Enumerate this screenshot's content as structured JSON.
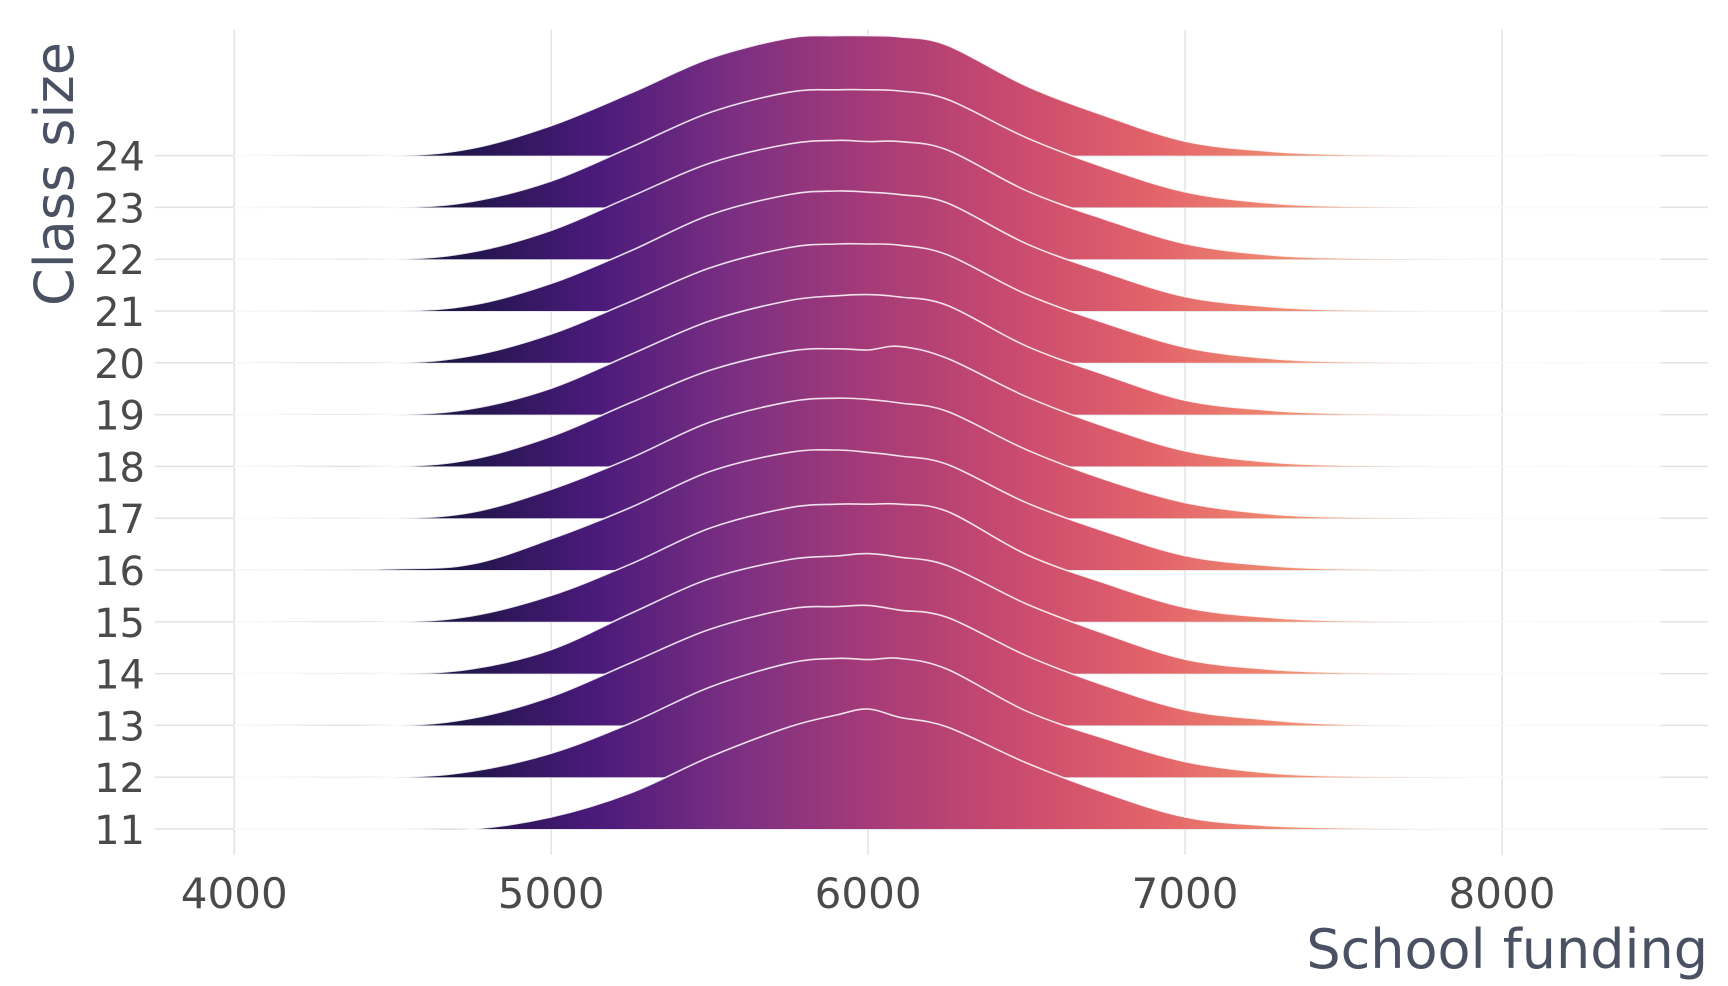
{
  "chart_data": {
    "type": "ridgeline",
    "xlabel": "School funding",
    "ylabel": "Class size",
    "xlim": [
      3750,
      8650
    ],
    "x_ticks": [
      4000,
      5000,
      6000,
      7000,
      8000
    ],
    "categories": [
      "11",
      "12",
      "13",
      "14",
      "15",
      "16",
      "17",
      "18",
      "19",
      "20",
      "21",
      "22",
      "23",
      "24"
    ],
    "grid": true,
    "legend": "none",
    "fill_gradient": [
      "#1e1548",
      "#4a1a7a",
      "#7b2f82",
      "#a63b78",
      "#c94a6e",
      "#e2626a",
      "#f08b70",
      "#f6bf9a",
      "#fdf0e6"
    ],
    "density": {
      "x": [
        4000,
        4500,
        4750,
        5000,
        5250,
        5500,
        5750,
        5900,
        6000,
        6100,
        6250,
        6500,
        6750,
        7000,
        7250,
        7500,
        8000,
        8500
      ],
      "series": [
        {
          "name": "11",
          "values": [
            0.0,
            0.0,
            0.0,
            0.1,
            0.3,
            0.6,
            0.85,
            0.95,
            1.0,
            0.93,
            0.85,
            0.55,
            0.3,
            0.1,
            0.03,
            0.01,
            0.0,
            0.0
          ]
        },
        {
          "name": "12",
          "values": [
            0.0,
            0.0,
            0.05,
            0.2,
            0.45,
            0.75,
            0.95,
            0.99,
            0.98,
            0.99,
            0.9,
            0.55,
            0.32,
            0.13,
            0.04,
            0.01,
            0.0,
            0.0
          ]
        },
        {
          "name": "13",
          "values": [
            0.0,
            0.0,
            0.06,
            0.24,
            0.52,
            0.8,
            0.97,
            0.99,
            1.0,
            0.96,
            0.9,
            0.58,
            0.33,
            0.13,
            0.05,
            0.01,
            0.0,
            0.0
          ]
        },
        {
          "name": "14",
          "values": [
            0.0,
            0.0,
            0.04,
            0.2,
            0.5,
            0.79,
            0.95,
            0.98,
            1.0,
            0.97,
            0.9,
            0.58,
            0.33,
            0.12,
            0.04,
            0.01,
            0.0,
            0.0
          ]
        },
        {
          "name": "15",
          "values": [
            0.0,
            0.0,
            0.05,
            0.22,
            0.48,
            0.78,
            0.95,
            0.98,
            0.98,
            0.98,
            0.92,
            0.56,
            0.32,
            0.12,
            0.04,
            0.01,
            0.0,
            0.0
          ]
        },
        {
          "name": "16",
          "values": [
            0.0,
            0.01,
            0.05,
            0.26,
            0.52,
            0.82,
            0.98,
            1.0,
            0.98,
            0.95,
            0.88,
            0.56,
            0.32,
            0.12,
            0.04,
            0.01,
            0.0,
            0.0
          ]
        },
        {
          "name": "17",
          "values": [
            0.0,
            0.0,
            0.05,
            0.24,
            0.5,
            0.8,
            0.97,
            1.0,
            0.99,
            0.96,
            0.89,
            0.57,
            0.32,
            0.13,
            0.04,
            0.01,
            0.0,
            0.0
          ]
        },
        {
          "name": "18",
          "values": [
            0.0,
            0.0,
            0.06,
            0.25,
            0.53,
            0.8,
            0.96,
            0.98,
            0.97,
            1.0,
            0.9,
            0.58,
            0.33,
            0.13,
            0.04,
            0.01,
            0.0,
            0.0
          ]
        },
        {
          "name": "19",
          "values": [
            0.0,
            0.0,
            0.05,
            0.22,
            0.5,
            0.78,
            0.95,
            0.99,
            1.0,
            0.98,
            0.91,
            0.57,
            0.33,
            0.12,
            0.04,
            0.01,
            0.0,
            0.0
          ]
        },
        {
          "name": "20",
          "values": [
            0.0,
            0.0,
            0.06,
            0.24,
            0.51,
            0.79,
            0.96,
            0.99,
            0.99,
            0.98,
            0.9,
            0.57,
            0.33,
            0.13,
            0.04,
            0.01,
            0.0,
            0.0
          ]
        },
        {
          "name": "21",
          "values": [
            0.0,
            0.0,
            0.05,
            0.23,
            0.5,
            0.8,
            0.97,
            1.0,
            0.99,
            0.97,
            0.9,
            0.56,
            0.32,
            0.12,
            0.04,
            0.01,
            0.0,
            0.0
          ]
        },
        {
          "name": "22",
          "values": [
            0.0,
            0.0,
            0.06,
            0.24,
            0.52,
            0.8,
            0.96,
            0.99,
            0.98,
            0.98,
            0.91,
            0.57,
            0.33,
            0.13,
            0.04,
            0.01,
            0.0,
            0.0
          ]
        },
        {
          "name": "23",
          "values": [
            0.0,
            0.0,
            0.05,
            0.22,
            0.5,
            0.79,
            0.96,
            0.98,
            0.98,
            0.97,
            0.9,
            0.58,
            0.33,
            0.13,
            0.04,
            0.01,
            0.0,
            0.0
          ]
        },
        {
          "name": "24",
          "values": [
            0.0,
            0.0,
            0.06,
            0.25,
            0.52,
            0.81,
            0.98,
            1.0,
            1.0,
            0.99,
            0.92,
            0.58,
            0.33,
            0.12,
            0.04,
            0.01,
            0.0,
            0.0
          ]
        }
      ]
    }
  }
}
